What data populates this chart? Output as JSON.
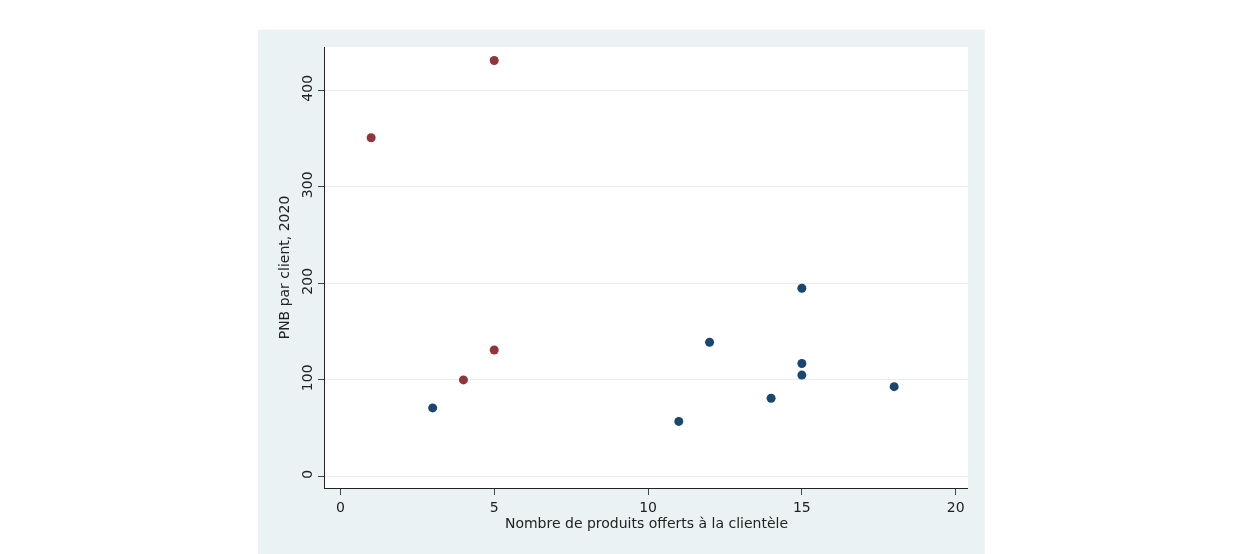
{
  "chart_data": {
    "type": "scatter",
    "xlabel": "Nombre de produits offerts à la clientèle",
    "ylabel": "PNB par client, 2020",
    "series": [
      {
        "color": "#90353b",
        "x": [
          1,
          5,
          4,
          5
        ],
        "values": [
          351,
          431,
          100,
          131
        ]
      },
      {
        "color": "#1a476f",
        "x": [
          3,
          11,
          12,
          14,
          15,
          15,
          15,
          18
        ],
        "values": [
          71,
          57,
          139,
          81,
          195,
          117,
          105,
          93
        ]
      }
    ],
    "xlim": [
      -0.5,
      20.4
    ],
    "xticks": [
      0,
      5,
      10,
      15,
      20
    ],
    "ylim": [
      -12,
      445
    ],
    "yticks": [
      0,
      100,
      200,
      300,
      400
    ],
    "grid": "y",
    "marker": "circle"
  }
}
